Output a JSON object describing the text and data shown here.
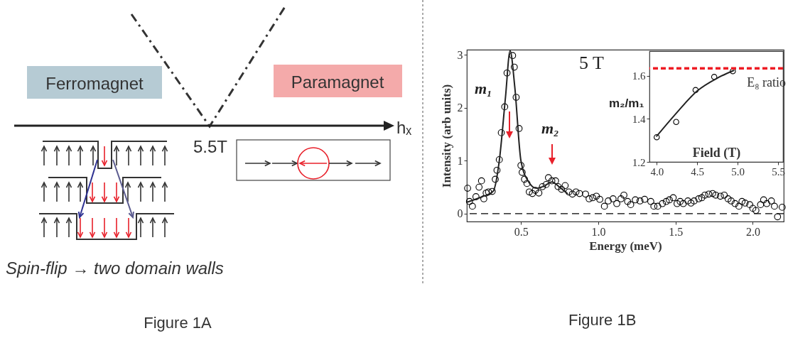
{
  "chart_data": [
    {
      "type": "other",
      "annotations": [
        "Ferromagnet",
        "Paramagnet",
        "hₓ",
        "5.5T",
        "Spin-flip → two domain walls",
        "Figure 1A"
      ]
    },
    {
      "type": "scatter",
      "xlabel": "Energy (meV)",
      "ylabel": "Intensity (arb units)",
      "xlim": [
        0.15,
        2.2
      ],
      "ylim": [
        -0.15,
        3.1
      ],
      "xticks": [
        0.5,
        {
          "value": 1,
          "label": "1.0"
        },
        1.5,
        {
          "value": 2,
          "label": "2.0"
        }
      ],
      "yticks": [
        0,
        1,
        2,
        3
      ],
      "grid": false,
      "series": [
        {
          "type": "scatter",
          "marker": "circle",
          "color": "#000000",
          "x": [
            0.155,
            0.167,
            0.186,
            0.209,
            0.229,
            0.245,
            0.26,
            0.275,
            0.29,
            0.314,
            0.334,
            0.345,
            0.36,
            0.373,
            0.395,
            0.41,
            0.446,
            0.457,
            0.469,
            0.488,
            0.5,
            0.508,
            0.523,
            0.539,
            0.554,
            0.574,
            0.593,
            0.616,
            0.639,
            0.663,
            0.678,
            0.7,
            0.724,
            0.74,
            0.763,
            0.786,
            0.81,
            0.833,
            0.856,
            0.879,
            0.918,
            0.941,
            0.964,
            0.988,
            1.01,
            1.04,
            1.065,
            1.096,
            1.12,
            1.147,
            1.166,
            1.19,
            1.21,
            1.24,
            1.27,
            1.3,
            1.34,
            1.36,
            1.385,
            1.415,
            1.44,
            1.46,
            1.485,
            1.51,
            1.53,
            1.55,
            1.58,
            1.6,
            1.62,
            1.65,
            1.67,
            1.69,
            1.715,
            1.74,
            1.76,
            1.79,
            1.815,
            1.84,
            1.86,
            1.885,
            1.91,
            1.93,
            1.95,
            1.98,
            2.0,
            2.02,
            2.05,
            2.07,
            2.09,
            2.12,
            2.14,
            2.16,
            2.19
          ],
          "values": [
            0.48,
            0.23,
            0.14,
            0.32,
            0.5,
            0.62,
            0.28,
            0.39,
            0.41,
            0.42,
            0.65,
            0.82,
            1.02,
            1.53,
            2.02,
            2.66,
            2.99,
            2.77,
            2.2,
            1.61,
            0.91,
            0.78,
            0.65,
            0.57,
            0.41,
            0.38,
            0.44,
            0.39,
            0.51,
            0.55,
            0.68,
            0.62,
            0.62,
            0.51,
            0.46,
            0.53,
            0.41,
            0.37,
            0.41,
            0.38,
            0.37,
            0.28,
            0.3,
            0.33,
            0.27,
            0.14,
            0.24,
            0.28,
            0.19,
            0.28,
            0.35,
            0.23,
            0.17,
            0.26,
            0.24,
            0.27,
            0.23,
            0.14,
            0.14,
            0.19,
            0.23,
            0.26,
            0.3,
            0.19,
            0.23,
            0.19,
            0.24,
            0.2,
            0.24,
            0.28,
            0.3,
            0.35,
            0.37,
            0.38,
            0.35,
            0.33,
            0.35,
            0.28,
            0.24,
            0.19,
            0.14,
            0.23,
            0.2,
            0.17,
            0.1,
            0.06,
            0.17,
            0.26,
            0.19,
            0.24,
            0.14,
            -0.06,
            0.12
          ]
        },
        {
          "type": "line",
          "marker": "none",
          "color": "#222222",
          "x": [
            0.155,
            0.25,
            0.32,
            0.36,
            0.4,
            0.43,
            0.46,
            0.5,
            0.55,
            0.6,
            0.65,
            0.7,
            0.75,
            0.8
          ],
          "values": [
            0.22,
            0.32,
            0.42,
            1.0,
            2.2,
            3.08,
            2.4,
            1.0,
            0.6,
            0.48,
            0.52,
            0.6,
            0.5,
            0.38
          ]
        }
      ],
      "ref_lines": [
        {
          "axis": "y",
          "value": 0,
          "line_style": "dashed",
          "color": "#000000"
        }
      ],
      "annotations": [
        "5 T",
        "m₁",
        "m₂",
        "Figure 1B"
      ]
    },
    {
      "type": "scatter",
      "xlabel": "Field (T)",
      "ylabel": "m₂/m₁",
      "xlim": [
        3.91,
        5.56
      ],
      "ylim": [
        1.2,
        1.715
      ],
      "xticks": [
        {
          "value": 4,
          "label": "4.0"
        },
        4.5,
        {
          "value": 5,
          "label": "5.0"
        },
        5.5
      ],
      "yticks": [
        1.2,
        1.4,
        1.6
      ],
      "grid": false,
      "series": [
        {
          "type": "scatter",
          "marker": "circle",
          "color": "#000000",
          "x": [
            4.0,
            4.24,
            4.48,
            4.71,
            4.94
          ],
          "values": [
            1.315,
            1.386,
            1.534,
            1.595,
            1.622
          ]
        },
        {
          "type": "line",
          "marker": "none",
          "color": "#222222",
          "x": [
            4.0,
            4.25,
            4.5,
            4.75,
            4.95
          ],
          "values": [
            1.32,
            1.43,
            1.53,
            1.59,
            1.625
          ]
        }
      ],
      "ref_lines": [
        {
          "axis": "y",
          "value": 1.635,
          "label": "E₈ ratio",
          "line_style": "dashed",
          "color": "#ee1c24"
        }
      ]
    }
  ]
}
